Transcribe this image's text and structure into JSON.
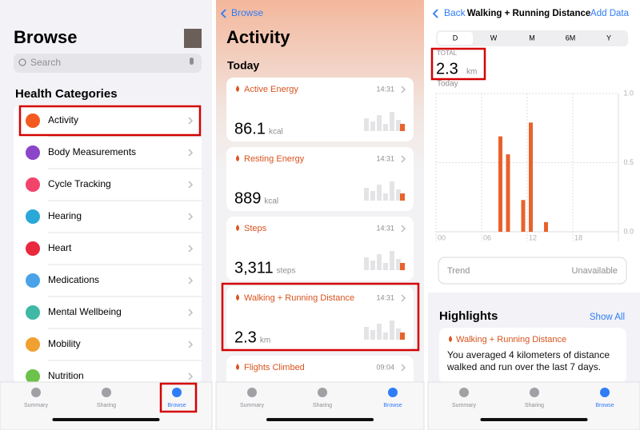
{
  "browse_panel": {
    "title": "Browse",
    "search_placeholder": "Search",
    "section_title": "Health Categories",
    "categories": [
      "Activity",
      "Body Measurements",
      "Cycle Tracking",
      "Hearing",
      "Heart",
      "Medications",
      "Mental Wellbeing",
      "Mobility",
      "Nutrition"
    ],
    "tab_bar": [
      "Summary",
      "Sharing",
      "Browse"
    ]
  },
  "activity_panel": {
    "back": "Browse",
    "title": "Activity",
    "section": "Today",
    "cards": [
      {
        "name": "Active Energy",
        "time": "14:31",
        "value": "86.1",
        "unit": "kcal"
      },
      {
        "name": "Resting Energy",
        "time": "14:31",
        "value": "889",
        "unit": "kcal"
      },
      {
        "name": "Steps",
        "time": "14:31",
        "value": "3,311",
        "unit": "steps"
      },
      {
        "name": "Walking + Running Distance",
        "time": "14:31",
        "value": "2.3",
        "unit": "km"
      },
      {
        "name": "Flights Climbed",
        "time": "09:04"
      }
    ],
    "tab_bar": [
      "Summary",
      "Sharing",
      "Browse"
    ]
  },
  "detail_panel": {
    "back": "Back",
    "title": "Walking + Running Distance",
    "action": "Add Data",
    "segments": [
      "D",
      "W",
      "M",
      "6M",
      "Y"
    ],
    "total_label": "TOTAL",
    "total_value": "2.3",
    "total_unit": "km",
    "period": "Today",
    "chart": {
      "type": "bar",
      "x": [
        8,
        9,
        11,
        12,
        14
      ],
      "values": [
        0.69,
        0.56,
        0.23,
        0.79,
        0.07
      ],
      "color": "#e8622c",
      "xlim": [
        0,
        24
      ],
      "xticks": [
        {
          "value": 0,
          "label": "00"
        },
        {
          "value": 6,
          "label": "06"
        },
        12,
        18
      ],
      "ylim": [
        0,
        1
      ],
      "yticks": [
        {
          "value": 0,
          "label": "0.0"
        },
        0.5,
        {
          "value": 1,
          "label": "1.0"
        }
      ]
    },
    "trend_label": "Trend",
    "trend_value": "Unavailable",
    "highlights_title": "Highlights",
    "show_all": "Show All",
    "highlight_name": "Walking + Running Distance",
    "highlight_text": "You averaged 4 kilometers of distance walked and run over the last 7 days.",
    "tab_bar": [
      "Summary",
      "Sharing",
      "Browse"
    ]
  }
}
